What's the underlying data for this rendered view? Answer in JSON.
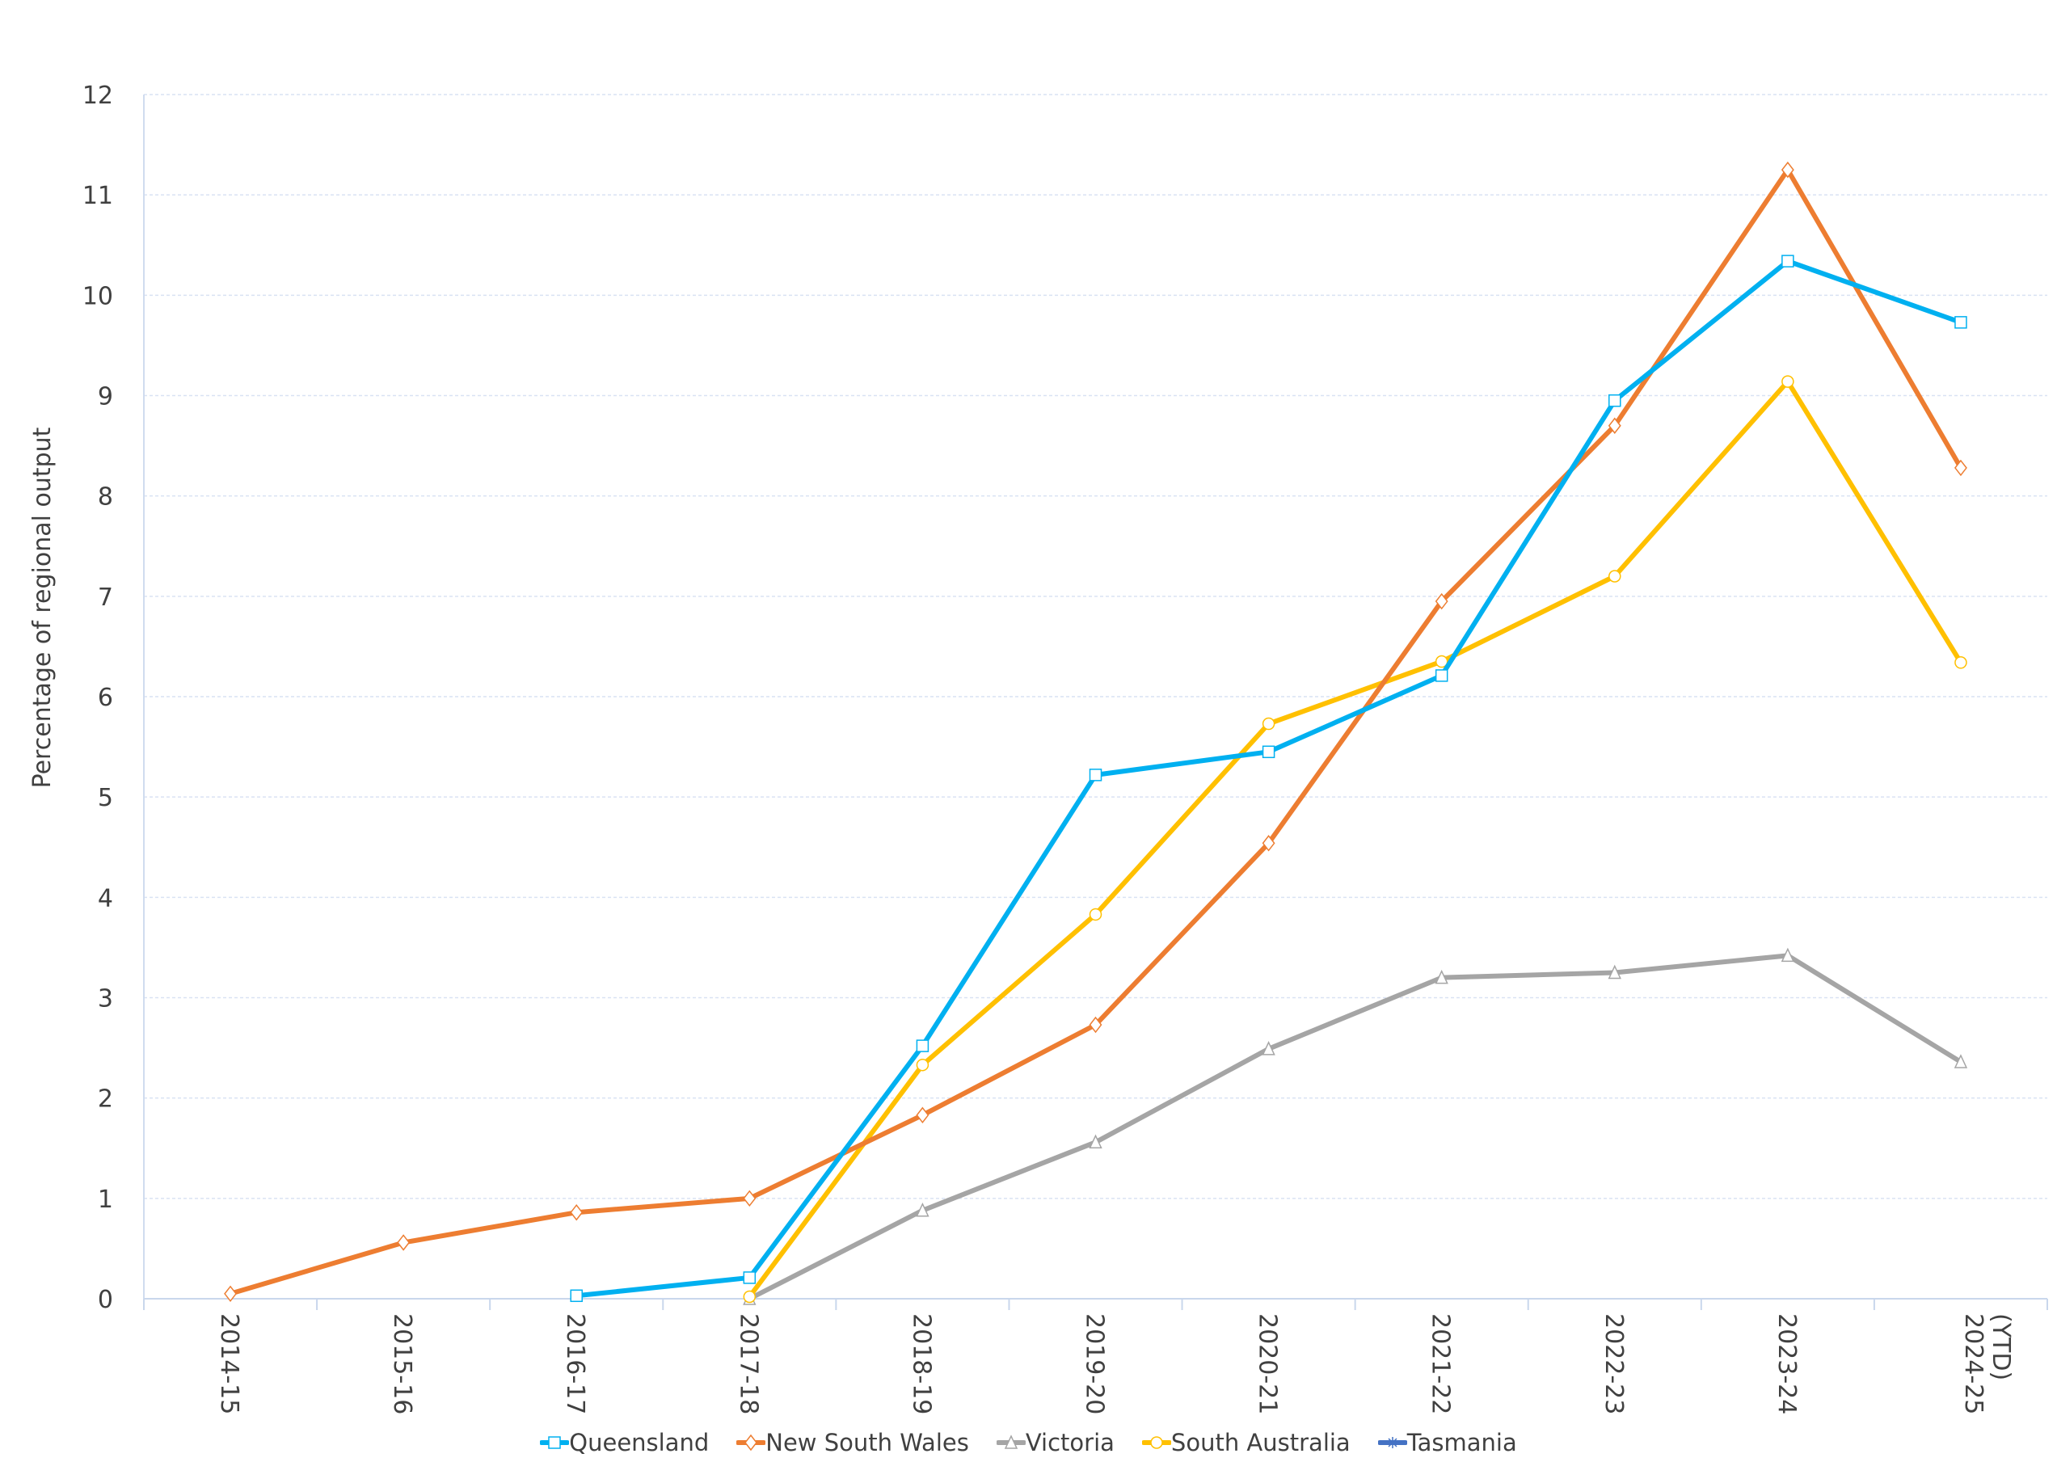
{
  "chart_data": {
    "type": "line",
    "title": "",
    "xlabel": "",
    "ylabel": "Percentage of regional output",
    "ylim": [
      0,
      12
    ],
    "yticks": [
      0,
      1,
      2,
      3,
      4,
      5,
      6,
      7,
      8,
      9,
      10,
      11,
      12
    ],
    "grid": true,
    "legend_position": "bottom",
    "categories": [
      "2014-15",
      "2015-16",
      "2016-17",
      "2017-18",
      "2018-19",
      "2019-20",
      "2020-21",
      "2021-22",
      "2022-23",
      "2023-24",
      "2024-25 (YTD)"
    ],
    "series": [
      {
        "name": "Queensland",
        "color": "#00B0F0",
        "marker": "square",
        "values": [
          null,
          null,
          0.03,
          0.21,
          2.52,
          5.22,
          5.45,
          6.21,
          8.95,
          10.34,
          9.73
        ]
      },
      {
        "name": "New South Wales",
        "color": "#ED7D31",
        "marker": "diamond",
        "values": [
          0.05,
          0.56,
          0.86,
          1.0,
          1.83,
          2.73,
          4.54,
          6.95,
          8.7,
          11.25,
          8.28
        ]
      },
      {
        "name": "Victoria",
        "color": "#A5A5A5",
        "marker": "triangle",
        "values": [
          null,
          null,
          null,
          0.0,
          0.88,
          1.56,
          2.49,
          3.2,
          3.25,
          3.42,
          2.36
        ]
      },
      {
        "name": "South Australia",
        "color": "#FFC000",
        "marker": "circle",
        "values": [
          null,
          null,
          null,
          0.02,
          2.33,
          3.83,
          5.73,
          6.35,
          7.2,
          9.14,
          6.34
        ]
      },
      {
        "name": "Tasmania",
        "color": "#4472C4",
        "marker": "star",
        "values": [
          null,
          null,
          null,
          null,
          null,
          null,
          null,
          null,
          null,
          null,
          null
        ]
      }
    ]
  },
  "axes": {
    "ylabel": "Percentage of regional output"
  },
  "legend": [
    {
      "label": "Queensland",
      "color": "#00B0F0",
      "icon": "square-marker-icon"
    },
    {
      "label": "New South Wales",
      "color": "#ED7D31",
      "icon": "diamond-marker-icon"
    },
    {
      "label": "Victoria",
      "color": "#A5A5A5",
      "icon": "triangle-marker-icon"
    },
    {
      "label": "South Australia",
      "color": "#FFC000",
      "icon": "circle-marker-icon"
    },
    {
      "label": "Tasmania",
      "color": "#4472C4",
      "icon": "star-marker-icon"
    }
  ]
}
